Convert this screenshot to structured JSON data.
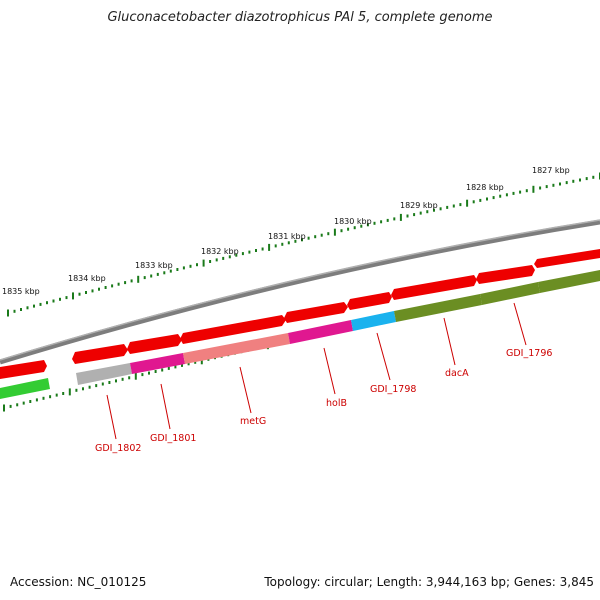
{
  "title": "Gluconacetobacter diazotrophicus PAl 5, complete genome",
  "accession": "Accession: NC_010125",
  "summary": "Topology: circular; Length: 3,944,163 bp; Genes: 3,845",
  "colors": {
    "forward_gene": "#ee0000",
    "backbone": "#808080",
    "tick": "#1a7a1a",
    "label": "#cc0000",
    "cog_olive": "#6b8e23",
    "cog_green": "#33cc33",
    "cog_magenta": "#e01890",
    "cog_salmon": "#f08080",
    "cog_cyan": "#1ab2ee",
    "cog_gray": "#b0b0b0"
  },
  "scale": {
    "outer_ticks": [
      "1827 kbp",
      "1828 kbp",
      "1829 kbp",
      "1830 kbp",
      "1831 kbp",
      "1832 kbp",
      "1833 kbp",
      "1834 kbp",
      "1835 kbp"
    ]
  },
  "gene_labels": [
    "GDI_1796",
    "dacA",
    "GDI_1798",
    "holB",
    "metG",
    "GDI_1801",
    "GDI_1802"
  ]
}
